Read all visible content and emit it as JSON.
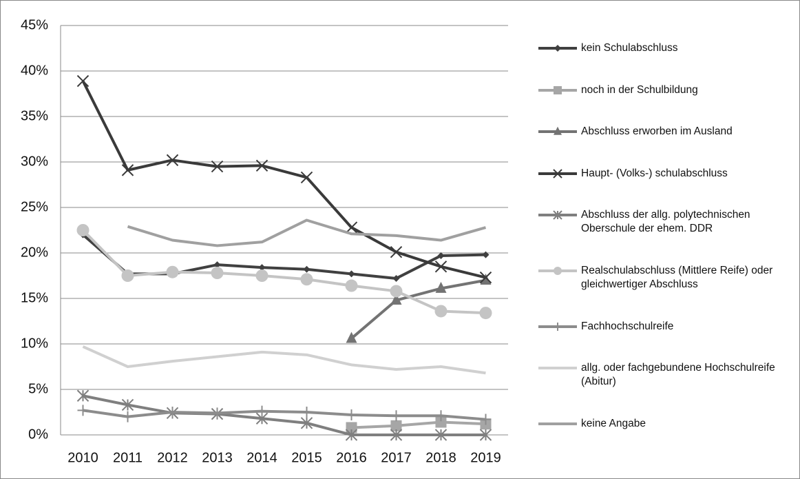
{
  "chart_data": {
    "type": "line",
    "categories": [
      "2010",
      "2011",
      "2012",
      "2013",
      "2014",
      "2015",
      "2016",
      "2017",
      "2018",
      "2019"
    ],
    "ylim": [
      0,
      45
    ],
    "yticks": [
      {
        "value": 0,
        "label": "0%"
      },
      {
        "value": 5,
        "label": "5%"
      },
      {
        "value": 10,
        "label": "10%"
      },
      {
        "value": 15,
        "label": "15%"
      },
      {
        "value": 20,
        "label": "20%"
      },
      {
        "value": 25,
        "label": "25%"
      },
      {
        "value": 30,
        "label": "30%"
      },
      {
        "value": 35,
        "label": "35%"
      },
      {
        "value": 40,
        "label": "40%"
      },
      {
        "value": 45,
        "label": "45%"
      }
    ],
    "grid": true,
    "legend": "right",
    "series": [
      {
        "name": "kein Schulabschluss",
        "color": "#404040",
        "marker": "diamond",
        "values": [
          22.0,
          17.7,
          17.7,
          18.7,
          18.4,
          18.2,
          17.7,
          17.2,
          19.7,
          19.8
        ]
      },
      {
        "name": "noch in der Schulbildung",
        "color": "#a6a6a6",
        "marker": "square",
        "values": [
          null,
          null,
          null,
          null,
          null,
          null,
          0.8,
          1.0,
          1.4,
          1.2
        ]
      },
      {
        "name": "Abschluss erworben im Ausland",
        "color": "#737373",
        "marker": "triangle",
        "values": [
          null,
          null,
          null,
          null,
          null,
          null,
          10.6,
          14.8,
          16.1,
          17.0
        ]
      },
      {
        "name": "Haupt- (Volks-) schulabschluss",
        "color": "#3a3a3a",
        "marker": "x",
        "values": [
          38.9,
          29.1,
          30.2,
          29.5,
          29.6,
          28.3,
          22.8,
          20.1,
          18.5,
          17.3
        ]
      },
      {
        "name": "Abschluss der allg. polytechnischen Oberschule der ehem. DDR",
        "color": "#7f7f7f",
        "marker": "asterisk",
        "values": [
          4.3,
          3.3,
          2.4,
          2.3,
          1.8,
          1.3,
          0,
          0,
          0,
          0
        ]
      },
      {
        "name": "Realschulabschluss (Mittlere Reife) oder gleichwertiger Abschluss",
        "color": "#c4c4c4",
        "marker": "circle",
        "values": [
          22.5,
          17.5,
          17.9,
          17.8,
          17.5,
          17.1,
          16.4,
          15.8,
          13.6,
          13.4
        ]
      },
      {
        "name": "Fachhochschulreife",
        "color": "#8c8c8c",
        "marker": "plus",
        "values": [
          2.7,
          2.0,
          2.5,
          2.4,
          2.6,
          2.5,
          2.2,
          2.1,
          2.1,
          1.7
        ]
      },
      {
        "name": "allg. oder fachgebundene Hochschulreife (Abitur)",
        "color": "#d0d0d0",
        "marker": "none",
        "values": [
          9.7,
          7.5,
          8.1,
          8.6,
          9.1,
          8.8,
          7.7,
          7.2,
          7.5,
          6.8
        ]
      },
      {
        "name": "keine Angabe",
        "color": "#a0a0a0",
        "marker": "none",
        "values": [
          null,
          22.9,
          21.4,
          20.8,
          21.2,
          23.6,
          22.1,
          21.9,
          21.4,
          22.8
        ]
      }
    ]
  }
}
